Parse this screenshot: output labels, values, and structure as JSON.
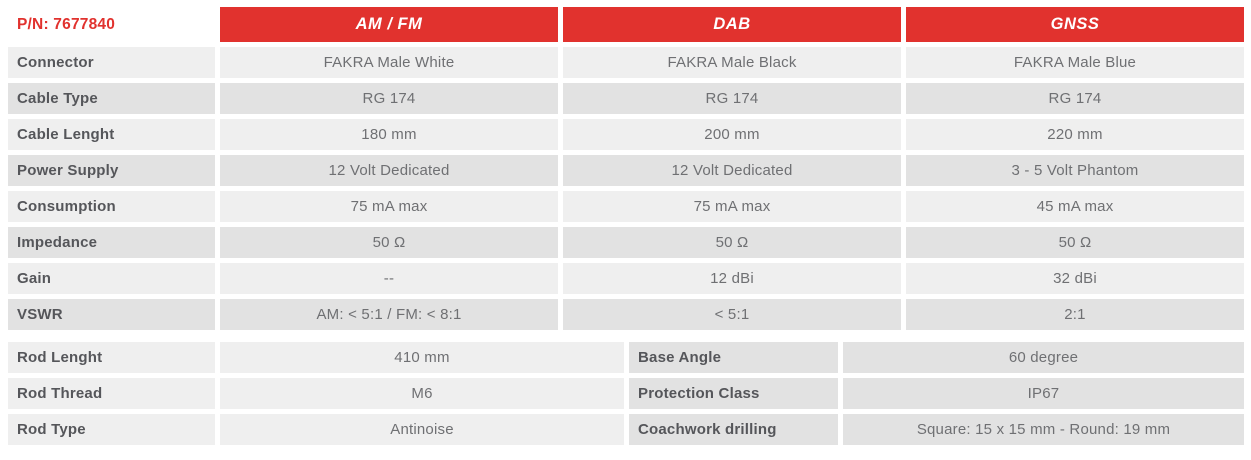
{
  "part_number": "P/N: 7677840",
  "colors": {
    "accent_red": "#e1322e",
    "row_light": "#efefef",
    "row_dark": "#e2e2e2",
    "label_text": "#55565a",
    "value_text": "#6f7073"
  },
  "spec_table": {
    "columns": [
      "AM / FM",
      "DAB",
      "GNSS"
    ],
    "rows": [
      {
        "label": "Connector",
        "values": [
          "FAKRA Male White",
          "FAKRA Male Black",
          "FAKRA Male Blue"
        ]
      },
      {
        "label": "Cable Type",
        "values": [
          "RG 174",
          "RG 174",
          "RG 174"
        ]
      },
      {
        "label": "Cable Lenght",
        "values": [
          "180 mm",
          "200 mm",
          "220 mm"
        ]
      },
      {
        "label": "Power Supply",
        "values": [
          "12 Volt Dedicated",
          "12 Volt Dedicated",
          "3 - 5 Volt Phantom"
        ]
      },
      {
        "label": "Consumption",
        "values": [
          "75 mA max",
          "75 mA max",
          "45 mA max"
        ]
      },
      {
        "label": "Impedance",
        "values": [
          "50 Ω",
          "50 Ω",
          "50 Ω"
        ]
      },
      {
        "label": "Gain",
        "values": [
          "--",
          "12 dBi",
          "32 dBi"
        ]
      },
      {
        "label": "VSWR",
        "values": [
          "AM: < 5:1 / FM: < 8:1",
          "< 5:1",
          "2:1"
        ]
      }
    ]
  },
  "mechanical_table": {
    "left_rows": [
      {
        "label": "Rod Lenght",
        "value": "410 mm"
      },
      {
        "label": "Rod Thread",
        "value": "M6"
      },
      {
        "label": "Rod Type",
        "value": "Antinoise"
      }
    ],
    "right_rows": [
      {
        "label": "Base Angle",
        "value": "60 degree"
      },
      {
        "label": "Protection Class",
        "value": "IP67"
      },
      {
        "label": "Coachwork drilling",
        "value": "Square: 15 x 15 mm - Round: 19 mm"
      }
    ]
  }
}
